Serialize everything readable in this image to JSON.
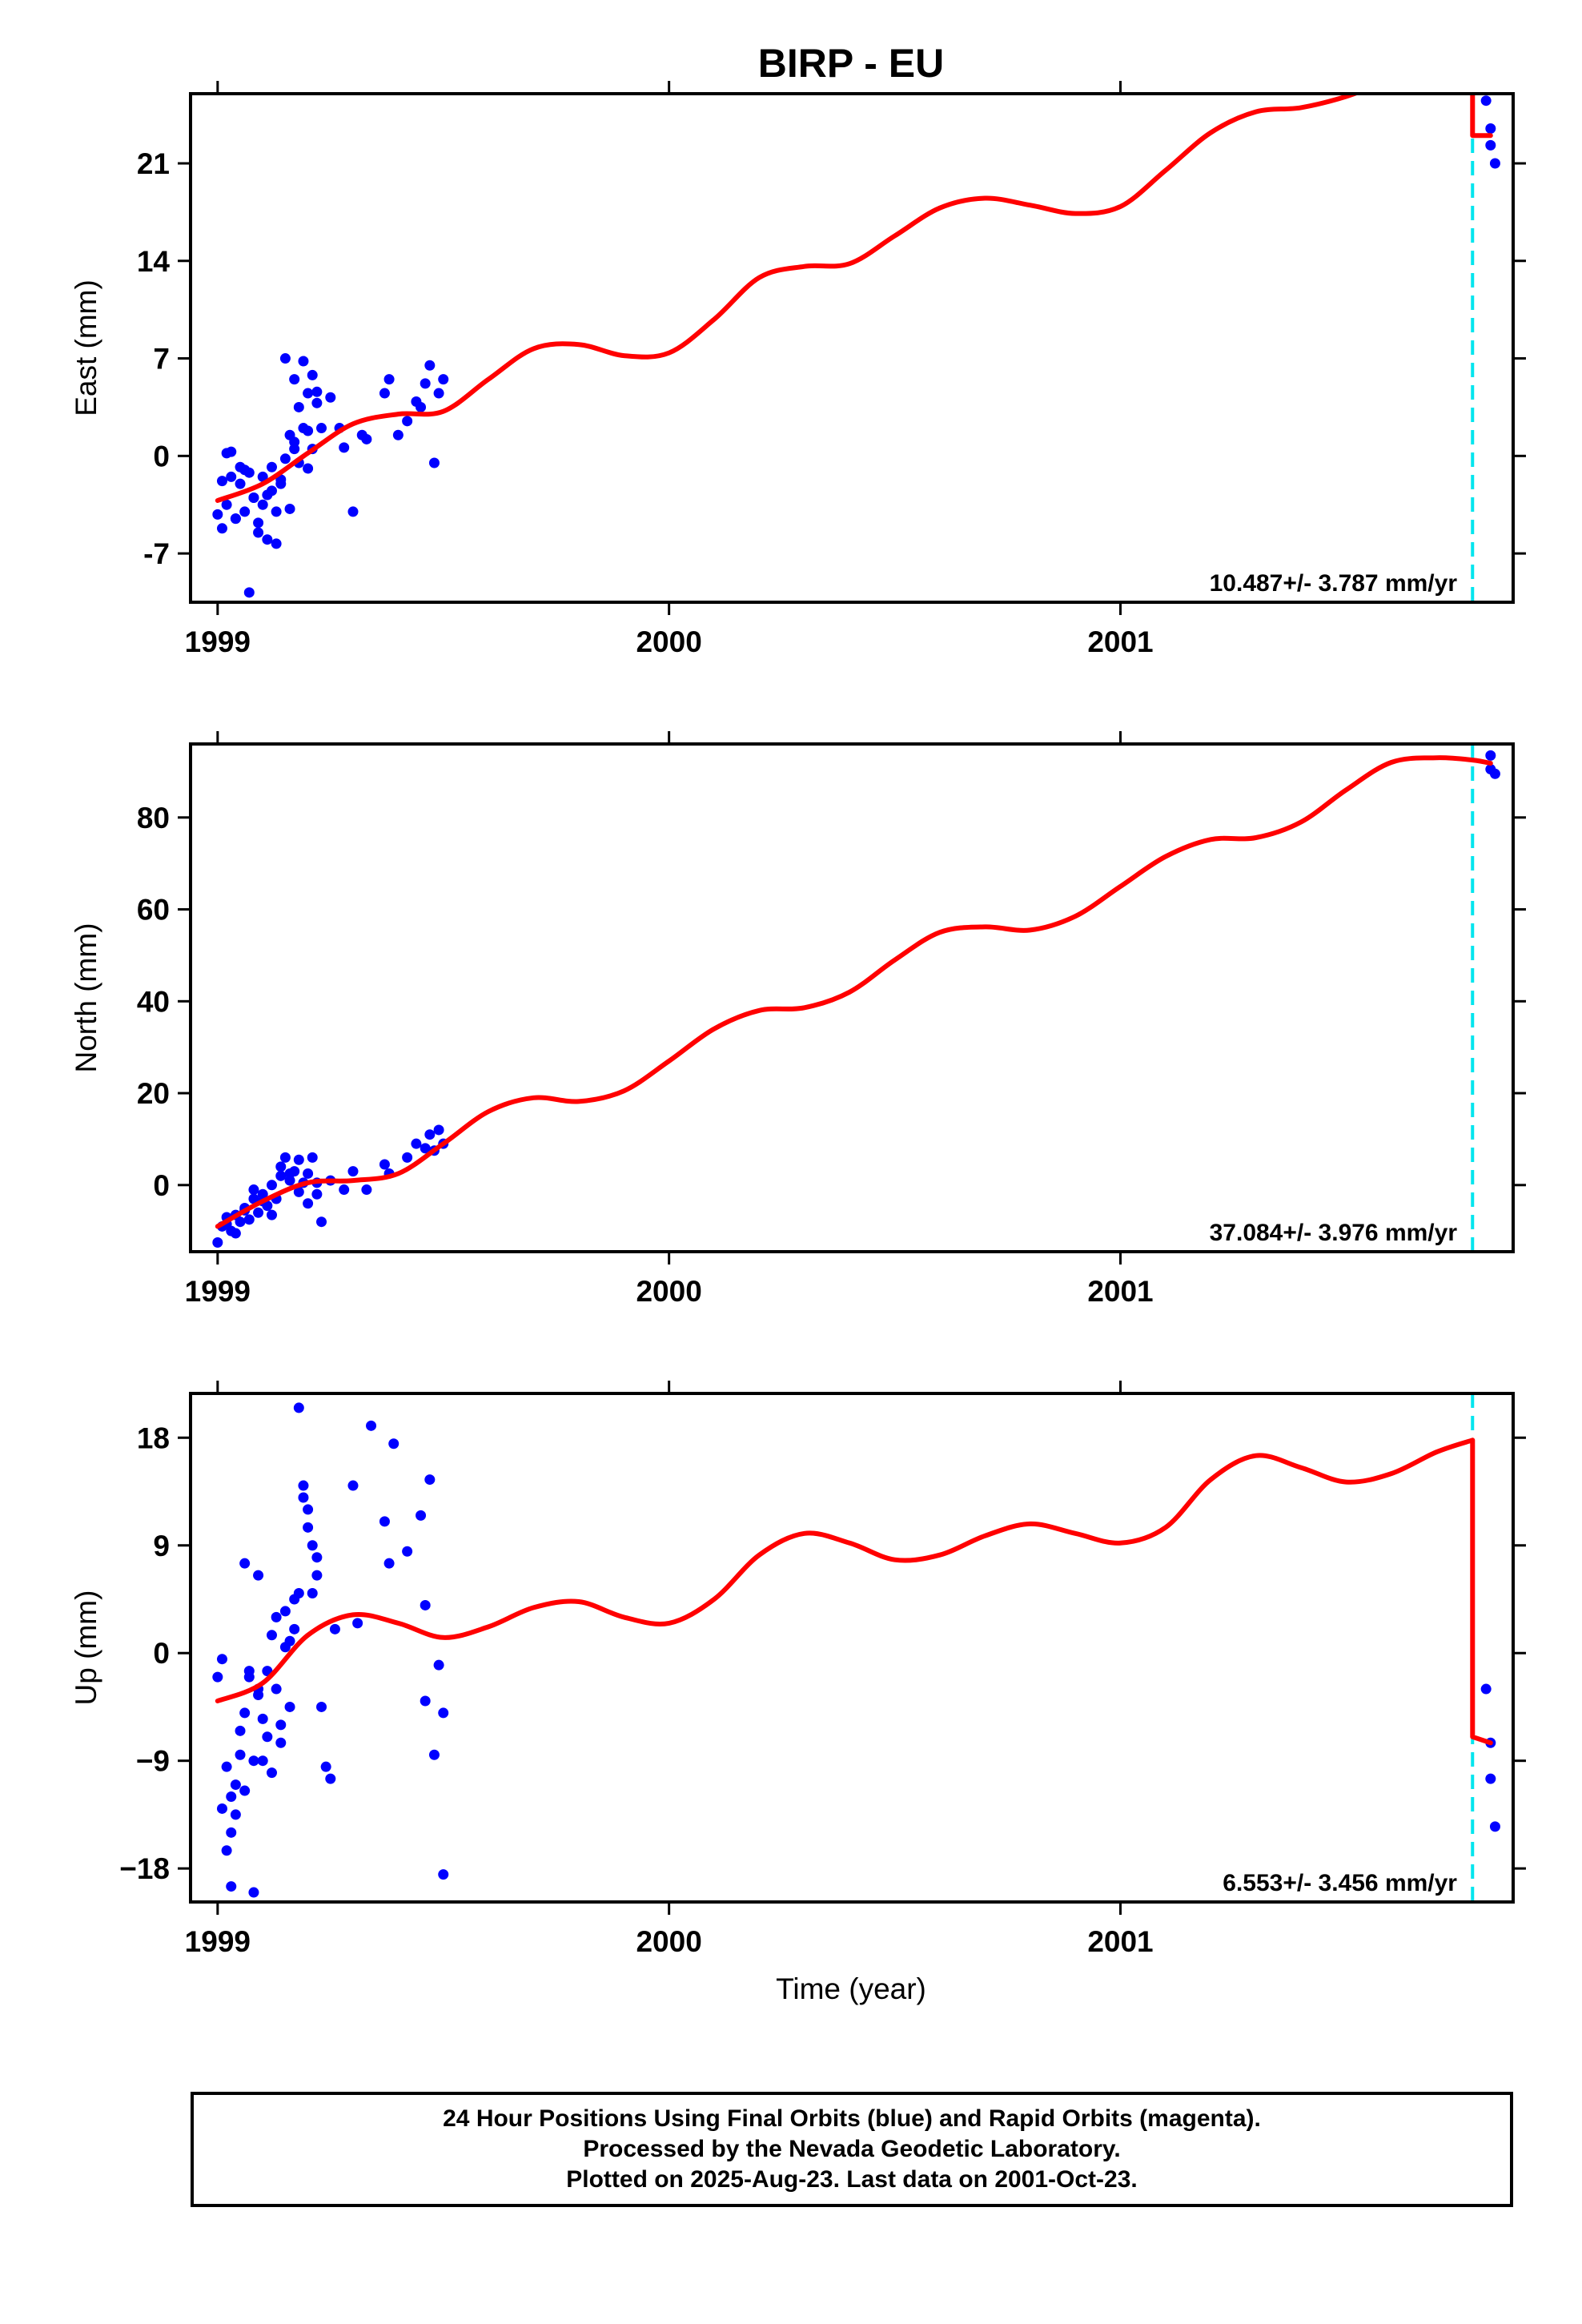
{
  "chart_data": [
    {
      "type": "scatter",
      "title": "BIRP - EU",
      "ylabel": "East (mm)",
      "xlabel": "",
      "xlim": [
        1998.94,
        2001.87
      ],
      "ylim": [
        -10.5,
        26
      ],
      "xticks": [
        1999,
        2000,
        2001
      ],
      "xtick_labels": [
        "1999",
        "2000",
        "2001"
      ],
      "yticks": [
        -7,
        0,
        7,
        14,
        21
      ],
      "ytick_labels": [
        "-7",
        "0",
        "7",
        "14",
        "21"
      ],
      "rate": "10.487+/- 3.787 mm/yr",
      "break_x": 2001.78,
      "colors": {
        "points": "#0000ff",
        "model": "#ff0000",
        "break": "#00e5ee"
      },
      "series": [
        {
          "kind": "points",
          "x": [
            1999.0,
            1999.01,
            1999.02,
            1999.02,
            1999.03,
            1999.04,
            1999.05,
            1999.05,
            1999.06,
            1999.07,
            1999.07,
            1999.08,
            1999.09,
            1999.1,
            1999.1,
            1999.11,
            1999.12,
            1999.12,
            1999.13,
            1999.14,
            1999.15,
            1999.15,
            1999.16,
            1999.17,
            1999.17,
            1999.18,
            1999.19,
            1999.2,
            1999.2,
            1999.21,
            1999.22,
            1999.23,
            1999.25,
            1999.27,
            1999.3,
            1999.32,
            1999.37,
            1999.38,
            1999.4,
            1999.42,
            1999.45,
            1999.47,
            1999.48,
            1999.49,
            1999.5,
            1999.01,
            1999.06,
            1999.09,
            1999.13,
            1999.16,
            1999.19,
            1999.22,
            1999.04,
            1999.11,
            1999.18,
            1999.21,
            1999.03,
            1999.08,
            1999.14,
            1999.2,
            1999.46,
            1999.33,
            1999.44,
            1999.28,
            1999.17,
            2001.81,
            2001.82,
            2001.82,
            2001.83
          ],
          "y": [
            -4.2,
            -1.8,
            0.2,
            -3.5,
            -1.5,
            -4.5,
            -2.0,
            -0.8,
            -4.0,
            -1.2,
            -9.8,
            -3.0,
            -5.5,
            -1.5,
            -3.5,
            -6.0,
            -0.8,
            -2.5,
            -4.0,
            -2.0,
            7.0,
            -0.2,
            1.5,
            5.5,
            0.5,
            3.5,
            2.0,
            1.8,
            4.5,
            0.5,
            3.8,
            2.0,
            4.2,
            2.0,
            -4.0,
            1.5,
            4.5,
            5.5,
            1.5,
            2.5,
            3.5,
            6.5,
            -0.5,
            4.5,
            5.5,
            -5.2,
            -1.0,
            -4.8,
            -6.3,
            -3.8,
            6.8,
            4.6,
            -4.5,
            -2.8,
            -0.5,
            5.8,
            0.3,
            -3.0,
            -1.7,
            -0.9,
            5.2,
            1.2,
            3.9,
            0.6,
            1.0,
            25.5,
            23.5,
            22.3,
            21.0
          ]
        },
        {
          "kind": "model",
          "x": [
            1999.0,
            1999.1,
            1999.2,
            1999.3,
            1999.4,
            1999.5,
            1999.6,
            1999.7,
            1999.8,
            1999.9,
            2000.0,
            2000.1,
            2000.2,
            2000.3,
            2000.4,
            2000.5,
            2000.6,
            2000.7,
            2000.8,
            2000.9,
            2001.0,
            2001.1,
            2001.2,
            2001.3,
            2001.4,
            2001.5,
            2001.6,
            2001.7,
            2001.78,
            2001.78,
            2001.82
          ],
          "y": [
            -3.2,
            -2.0,
            0.2,
            2.3,
            3.0,
            3.2,
            5.5,
            7.7,
            8.0,
            7.2,
            7.4,
            9.8,
            12.8,
            13.6,
            13.8,
            15.8,
            17.8,
            18.5,
            18.0,
            17.4,
            17.9,
            20.5,
            23.2,
            24.7,
            25.0,
            25.8,
            27.0,
            27.8,
            28.0,
            23.0,
            23.0
          ]
        }
      ]
    },
    {
      "type": "scatter",
      "ylabel": "North (mm)",
      "xlabel": "",
      "xlim": [
        1998.94,
        2001.87
      ],
      "ylim": [
        -14.5,
        96
      ],
      "xticks": [
        1999,
        2000,
        2001
      ],
      "xtick_labels": [
        "1999",
        "2000",
        "2001"
      ],
      "yticks": [
        0,
        20,
        40,
        60,
        80
      ],
      "ytick_labels": [
        "0",
        "20",
        "40",
        "60",
        "80"
      ],
      "rate": "37.084+/- 3.976 mm/yr",
      "break_x": 2001.78,
      "colors": {
        "points": "#0000ff",
        "model": "#ff0000",
        "break": "#00e5ee"
      },
      "series": [
        {
          "kind": "points",
          "x": [
            1999.0,
            1999.01,
            1999.02,
            1999.03,
            1999.04,
            1999.05,
            1999.06,
            1999.07,
            1999.08,
            1999.09,
            1999.1,
            1999.11,
            1999.12,
            1999.13,
            1999.14,
            1999.15,
            1999.16,
            1999.17,
            1999.18,
            1999.19,
            1999.2,
            1999.21,
            1999.22,
            1999.23,
            1999.25,
            1999.28,
            1999.3,
            1999.33,
            1999.37,
            1999.38,
            1999.42,
            1999.44,
            1999.46,
            1999.47,
            1999.48,
            1999.49,
            1999.5,
            1999.02,
            1999.06,
            1999.1,
            1999.14,
            1999.18,
            1999.22,
            1999.04,
            1999.12,
            1999.16,
            1999.2,
            1999.08,
            2001.82,
            2001.82,
            2001.83
          ],
          "y": [
            -12.5,
            -9.0,
            -7.0,
            -10.0,
            -6.5,
            -8.0,
            -5.0,
            -7.5,
            -3.0,
            -6.0,
            -2.0,
            -4.5,
            0.0,
            -3.0,
            2.0,
            6.0,
            1.0,
            3.0,
            5.5,
            0.5,
            2.5,
            6.0,
            -2.0,
            -8.0,
            1.0,
            -1.0,
            3.0,
            -1.0,
            4.5,
            2.5,
            6.0,
            9.0,
            8.0,
            11.0,
            7.5,
            12.0,
            9.0,
            -8.5,
            -5.5,
            -3.5,
            4.0,
            -1.5,
            0.5,
            -10.5,
            -6.5,
            2.5,
            -4.0,
            -1.0,
            93.5,
            90.5,
            89.5
          ]
        },
        {
          "kind": "model",
          "x": [
            1999.0,
            1999.1,
            1999.2,
            1999.3,
            1999.4,
            1999.5,
            1999.6,
            1999.7,
            1999.8,
            1999.9,
            2000.0,
            2000.1,
            2000.2,
            2000.3,
            2000.4,
            2000.5,
            2000.6,
            2000.7,
            2000.8,
            2000.9,
            2001.0,
            2001.1,
            2001.2,
            2001.3,
            2001.4,
            2001.5,
            2001.6,
            2001.7,
            2001.78,
            2001.82
          ],
          "y": [
            -9.0,
            -3.5,
            0.5,
            1.0,
            2.5,
            9.0,
            16.0,
            19.0,
            18.2,
            20.5,
            27.0,
            34.0,
            38.0,
            38.6,
            42.0,
            49.0,
            55.0,
            56.2,
            55.5,
            58.5,
            65.0,
            71.5,
            75.2,
            75.6,
            79.0,
            86.0,
            92.0,
            93.0,
            92.5,
            91.8
          ]
        }
      ]
    },
    {
      "type": "scatter",
      "ylabel": "Up (mm)",
      "xlabel": "Time (year)",
      "xlim": [
        1998.94,
        2001.87
      ],
      "ylim": [
        -20.8,
        21.7
      ],
      "xticks": [
        1999,
        2000,
        2001
      ],
      "xtick_labels": [
        "1999",
        "2000",
        "2001"
      ],
      "yticks": [
        -18,
        -9,
        0,
        9,
        18
      ],
      "ytick_labels": [
        "−18",
        "−9",
        "0",
        "9",
        "18"
      ],
      "rate": "6.553+/- 3.456 mm/yr",
      "break_x": 2001.78,
      "colors": {
        "points": "#0000ff",
        "model": "#ff0000",
        "break": "#00e5ee"
      },
      "series": [
        {
          "kind": "points",
          "x": [
            1999.0,
            1999.01,
            1999.01,
            1999.02,
            1999.02,
            1999.03,
            1999.03,
            1999.04,
            1999.05,
            1999.05,
            1999.06,
            1999.06,
            1999.07,
            1999.08,
            1999.08,
            1999.09,
            1999.09,
            1999.1,
            1999.11,
            1999.11,
            1999.12,
            1999.12,
            1999.13,
            1999.14,
            1999.15,
            1999.15,
            1999.16,
            1999.17,
            1999.18,
            1999.18,
            1999.19,
            1999.19,
            1999.2,
            1999.21,
            1999.21,
            1999.22,
            1999.23,
            1999.24,
            1999.25,
            1999.3,
            1999.31,
            1999.34,
            1999.38,
            1999.39,
            1999.42,
            1999.45,
            1999.46,
            1999.47,
            1999.48,
            1999.49,
            1999.5,
            1999.5,
            1999.03,
            1999.07,
            1999.1,
            1999.13,
            1999.16,
            1999.2,
            1999.04,
            1999.06,
            1999.09,
            1999.14,
            1999.17,
            1999.22,
            1999.26,
            1999.37,
            1999.46,
            2001.81,
            2001.82,
            2001.82,
            2001.83
          ],
          "y": [
            -2.0,
            -13.0,
            -0.5,
            -16.5,
            -9.5,
            -19.5,
            -12.0,
            -11.0,
            -8.5,
            -6.5,
            -5.0,
            7.5,
            -1.5,
            -9.0,
            -20.0,
            -3.5,
            6.5,
            -5.5,
            -7.0,
            -1.5,
            -10.0,
            1.5,
            -3.0,
            -6.0,
            3.5,
            0.5,
            -4.5,
            2.0,
            5.0,
            20.5,
            14.0,
            13.0,
            12.0,
            5.0,
            9.0,
            6.5,
            -4.5,
            -9.5,
            -10.5,
            14.0,
            2.5,
            19.0,
            7.5,
            17.5,
            8.5,
            11.5,
            -4.0,
            14.5,
            -8.5,
            -1.0,
            -5.0,
            -18.5,
            -15.0,
            -2.0,
            -9.0,
            3.0,
            1.0,
            10.5,
            -13.5,
            -11.5,
            -3.0,
            -7.5,
            4.5,
            8.0,
            2.0,
            11.0,
            4.0,
            -3.0,
            -7.5,
            -10.5,
            -14.5
          ]
        },
        {
          "kind": "model",
          "x": [
            1999.0,
            1999.1,
            1999.2,
            1999.3,
            1999.4,
            1999.5,
            1999.6,
            1999.7,
            1999.8,
            1999.9,
            2000.0,
            2000.1,
            2000.2,
            2000.3,
            2000.4,
            2000.5,
            2000.6,
            2000.7,
            2000.8,
            2000.9,
            2001.0,
            2001.1,
            2001.2,
            2001.3,
            2001.4,
            2001.5,
            2001.6,
            2001.7,
            2001.78,
            2001.78,
            2001.82
          ],
          "y": [
            -4.0,
            -2.5,
            1.5,
            3.2,
            2.5,
            1.3,
            2.2,
            3.8,
            4.3,
            3.0,
            2.5,
            4.5,
            8.2,
            10.0,
            9.2,
            7.8,
            8.2,
            9.8,
            10.8,
            10.0,
            9.2,
            10.5,
            14.5,
            16.5,
            15.5,
            14.3,
            15.0,
            16.8,
            17.8,
            -7.0,
            -7.5
          ]
        }
      ]
    }
  ],
  "caption": {
    "line1": "24 Hour Positions Using Final Orbits (blue) and Rapid Orbits (magenta).",
    "line2": "Processed by the Nevada Geodetic Laboratory.",
    "line3": "Plotted on 2025-Aug-23. Last data on 2001-Oct-23."
  }
}
